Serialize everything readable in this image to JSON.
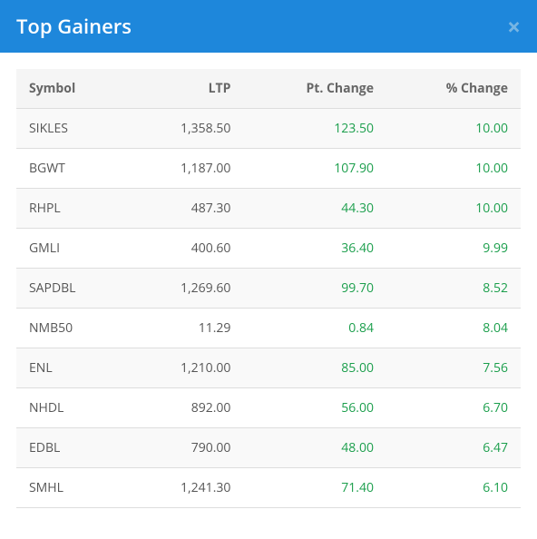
{
  "header": {
    "title": "Top Gainers",
    "close": "×"
  },
  "table": {
    "columns": [
      "Symbol",
      "LTP",
      "Pt. Change",
      "% Change"
    ],
    "rows": [
      {
        "symbol": "SIKLES",
        "ltp": "1,358.50",
        "pt_change": "123.50",
        "pct_change": "10.00"
      },
      {
        "symbol": "BGWT",
        "ltp": "1,187.00",
        "pt_change": "107.90",
        "pct_change": "10.00"
      },
      {
        "symbol": "RHPL",
        "ltp": "487.30",
        "pt_change": "44.30",
        "pct_change": "10.00"
      },
      {
        "symbol": "GMLI",
        "ltp": "400.60",
        "pt_change": "36.40",
        "pct_change": "9.99"
      },
      {
        "symbol": "SAPDBL",
        "ltp": "1,269.60",
        "pt_change": "99.70",
        "pct_change": "8.52"
      },
      {
        "symbol": "NMB50",
        "ltp": "11.29",
        "pt_change": "0.84",
        "pct_change": "8.04"
      },
      {
        "symbol": "ENL",
        "ltp": "1,210.00",
        "pt_change": "85.00",
        "pct_change": "7.56"
      },
      {
        "symbol": "NHDL",
        "ltp": "892.00",
        "pt_change": "56.00",
        "pct_change": "6.70"
      },
      {
        "symbol": "EDBL",
        "ltp": "790.00",
        "pt_change": "48.00",
        "pct_change": "6.47"
      },
      {
        "symbol": "SMHL",
        "ltp": "1,241.30",
        "pt_change": "71.40",
        "pct_change": "6.10"
      }
    ]
  },
  "colors": {
    "header_bg": "#1e87db",
    "gain": "#1a9e4b",
    "row_alt": "#f9f9f9",
    "border": "#dddddd"
  }
}
